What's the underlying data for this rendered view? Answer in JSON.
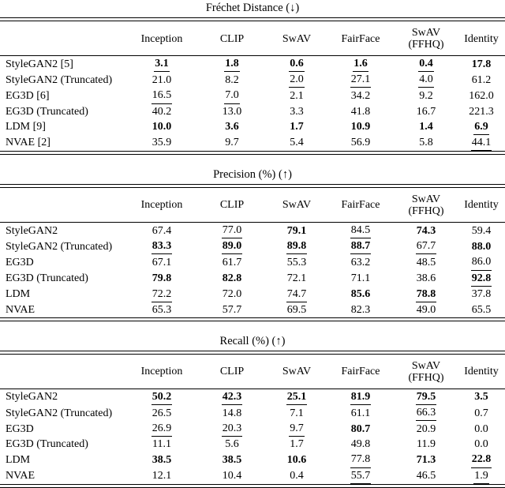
{
  "colors": {
    "text": "#000000",
    "background": "#ffffff"
  },
  "tables": [
    {
      "title": "Fréchet Distance (↓)",
      "direction_arrow": "↓",
      "columns": [
        [
          "Inception"
        ],
        [
          "CLIP"
        ],
        [
          "SwAV"
        ],
        [
          "FairFace"
        ],
        [
          "SwAV",
          "(FFHQ)"
        ],
        [
          "Identity"
        ]
      ],
      "rows": [
        {
          "label": "StyleGAN2 [5]",
          "cells": [
            {
              "v": "3.1",
              "b": true,
              "u": true
            },
            {
              "v": "1.8",
              "b": true,
              "u": true
            },
            {
              "v": "0.6",
              "b": true,
              "u": true
            },
            {
              "v": "1.6",
              "b": true,
              "u": true
            },
            {
              "v": "0.4",
              "b": true,
              "u": true
            },
            {
              "v": "17.8",
              "b": true
            }
          ]
        },
        {
          "label": "StyleGAN2 (Truncated)",
          "cells": [
            {
              "v": "21.0"
            },
            {
              "v": "8.2"
            },
            {
              "v": "2.0",
              "u": true
            },
            {
              "v": "27.1",
              "u": true
            },
            {
              "v": "4.0",
              "u": true
            },
            {
              "v": "61.2"
            }
          ]
        },
        {
          "label": "EG3D [6]",
          "cells": [
            {
              "v": "16.5",
              "u": true
            },
            {
              "v": "7.0",
              "u": true
            },
            {
              "v": "2.1"
            },
            {
              "v": "34.2"
            },
            {
              "v": "9.2"
            },
            {
              "v": "162.0"
            }
          ]
        },
        {
          "label": "EG3D (Truncated)",
          "cells": [
            {
              "v": "40.2"
            },
            {
              "v": "13.0"
            },
            {
              "v": "3.3"
            },
            {
              "v": "41.8"
            },
            {
              "v": "16.7"
            },
            {
              "v": "221.3"
            }
          ]
        },
        {
          "label": "LDM [9]",
          "cells": [
            {
              "v": "10.0",
              "b": true
            },
            {
              "v": "3.6",
              "b": true
            },
            {
              "v": "1.7",
              "b": true
            },
            {
              "v": "10.9",
              "b": true
            },
            {
              "v": "1.4",
              "b": true
            },
            {
              "v": "6.9",
              "b": true,
              "u": true
            }
          ]
        },
        {
          "label": "NVAE [2]",
          "cells": [
            {
              "v": "35.9"
            },
            {
              "v": "9.7"
            },
            {
              "v": "5.4"
            },
            {
              "v": "56.9"
            },
            {
              "v": "5.8"
            },
            {
              "v": "44.1",
              "u": true
            }
          ]
        }
      ]
    },
    {
      "title": "Precision (%) (↑)",
      "direction_arrow": "↑",
      "columns": [
        [
          "Inception"
        ],
        [
          "CLIP"
        ],
        [
          "SwAV"
        ],
        [
          "FairFace"
        ],
        [
          "SwAV",
          "(FFHQ)"
        ],
        [
          "Identity"
        ]
      ],
      "rows": [
        {
          "label": "StyleGAN2",
          "cells": [
            {
              "v": "67.4"
            },
            {
              "v": "77.0",
              "u": true
            },
            {
              "v": "79.1",
              "b": true
            },
            {
              "v": "84.5",
              "u": true
            },
            {
              "v": "74.3",
              "b": true
            },
            {
              "v": "59.4"
            }
          ]
        },
        {
          "label": "StyleGAN2 (Truncated)",
          "cells": [
            {
              "v": "83.3",
              "b": true,
              "u": true
            },
            {
              "v": "89.0",
              "b": true,
              "u": true
            },
            {
              "v": "89.8",
              "b": true,
              "u": true
            },
            {
              "v": "88.7",
              "b": true,
              "u": true
            },
            {
              "v": "67.7",
              "u": true
            },
            {
              "v": "88.0",
              "b": true
            }
          ]
        },
        {
          "label": "EG3D",
          "cells": [
            {
              "v": "67.1"
            },
            {
              "v": "61.7"
            },
            {
              "v": "55.3"
            },
            {
              "v": "63.2"
            },
            {
              "v": "48.5"
            },
            {
              "v": "86.0",
              "u": true
            }
          ]
        },
        {
          "label": "EG3D (Truncated)",
          "cells": [
            {
              "v": "79.8",
              "b": true
            },
            {
              "v": "82.8",
              "b": true
            },
            {
              "v": "72.1"
            },
            {
              "v": "71.1"
            },
            {
              "v": "38.6"
            },
            {
              "v": "92.8",
              "b": true,
              "u": true
            }
          ]
        },
        {
          "label": "LDM",
          "cells": [
            {
              "v": "72.2",
              "u": true
            },
            {
              "v": "72.0"
            },
            {
              "v": "74.7",
              "u": true
            },
            {
              "v": "85.6",
              "b": true
            },
            {
              "v": "78.8",
              "b": true,
              "u": true
            },
            {
              "v": "37.8"
            }
          ]
        },
        {
          "label": "NVAE",
          "cells": [
            {
              "v": "65.3"
            },
            {
              "v": "57.7"
            },
            {
              "v": "69.5"
            },
            {
              "v": "82.3"
            },
            {
              "v": "49.0"
            },
            {
              "v": "65.5"
            }
          ]
        }
      ]
    },
    {
      "title": "Recall (%) (↑)",
      "direction_arrow": "↑",
      "columns": [
        [
          "Inception"
        ],
        [
          "CLIP"
        ],
        [
          "SwAV"
        ],
        [
          "FairFace"
        ],
        [
          "SwAV",
          "(FFHQ)"
        ],
        [
          "Identity"
        ]
      ],
      "rows": [
        {
          "label": "StyleGAN2",
          "cells": [
            {
              "v": "50.2",
              "b": true,
              "u": true
            },
            {
              "v": "42.3",
              "b": true,
              "u": true
            },
            {
              "v": "25.1",
              "b": true,
              "u": true
            },
            {
              "v": "81.9",
              "b": true,
              "u": true
            },
            {
              "v": "79.5",
              "b": true,
              "u": true
            },
            {
              "v": "3.5",
              "b": true
            }
          ]
        },
        {
          "label": "StyleGAN2 (Truncated)",
          "cells": [
            {
              "v": "26.5"
            },
            {
              "v": "14.8"
            },
            {
              "v": "7.1"
            },
            {
              "v": "61.1"
            },
            {
              "v": "66.3",
              "u": true
            },
            {
              "v": "0.7"
            }
          ]
        },
        {
          "label": "EG3D",
          "cells": [
            {
              "v": "26.9",
              "u": true
            },
            {
              "v": "20.3",
              "u": true
            },
            {
              "v": "9.7",
              "u": true
            },
            {
              "v": "80.7",
              "b": true
            },
            {
              "v": "20.9"
            },
            {
              "v": "0.0"
            }
          ]
        },
        {
          "label": "EG3D (Truncated)",
          "cells": [
            {
              "v": "11.1"
            },
            {
              "v": "5.6"
            },
            {
              "v": "1.7"
            },
            {
              "v": "49.8"
            },
            {
              "v": "11.9"
            },
            {
              "v": "0.0"
            }
          ]
        },
        {
          "label": "LDM",
          "cells": [
            {
              "v": "38.5",
              "b": true
            },
            {
              "v": "38.5",
              "b": true
            },
            {
              "v": "10.6",
              "b": true
            },
            {
              "v": "77.8",
              "u": true
            },
            {
              "v": "71.3",
              "b": true
            },
            {
              "v": "22.8",
              "b": true,
              "u": true
            }
          ]
        },
        {
          "label": "NVAE",
          "cells": [
            {
              "v": "12.1"
            },
            {
              "v": "10.4"
            },
            {
              "v": "0.4"
            },
            {
              "v": "55.7",
              "u": true
            },
            {
              "v": "46.5"
            },
            {
              "v": "1.9",
              "u": true
            }
          ]
        }
      ]
    }
  ]
}
